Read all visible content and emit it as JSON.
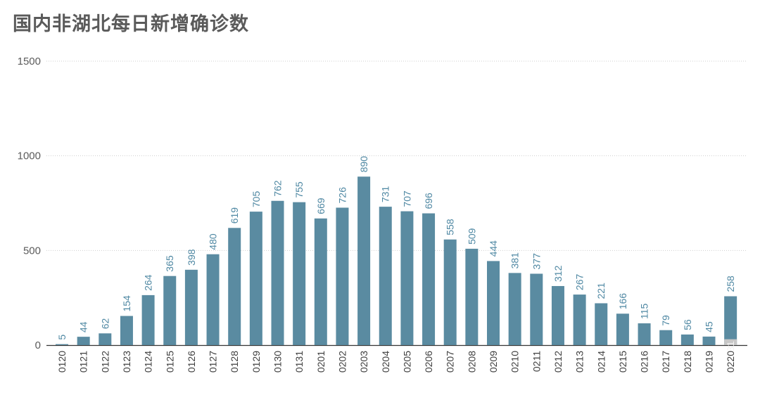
{
  "title": "国内非湖北每日新增确诊数",
  "colors": {
    "bar": "#5a8ba1",
    "bar_sub": "#c7c7c7",
    "label": "#4f88a3",
    "grid": "#cfcfcf",
    "title": "#5a5a5a"
  },
  "chart_data": {
    "type": "bar",
    "title": "国内非湖北每日新增确诊数",
    "xlabel": "",
    "ylabel": "",
    "ylim": [
      0,
      1500
    ],
    "yticks": [
      0,
      500,
      1000,
      1500
    ],
    "grid": true,
    "categories": [
      "0120",
      "0121",
      "0122",
      "0123",
      "0124",
      "0125",
      "0126",
      "0127",
      "0128",
      "0129",
      "0130",
      "0131",
      "0201",
      "0202",
      "0203",
      "0204",
      "0205",
      "0206",
      "0207",
      "0208",
      "0209",
      "0210",
      "0211",
      "0212",
      "0213",
      "0214",
      "0215",
      "0216",
      "0217",
      "0218",
      "0219",
      "0220"
    ],
    "values": [
      5,
      44,
      62,
      154,
      264,
      365,
      398,
      480,
      619,
      705,
      762,
      755,
      669,
      726,
      890,
      731,
      707,
      696,
      558,
      509,
      444,
      381,
      377,
      312,
      267,
      221,
      166,
      115,
      79,
      56,
      45,
      258
    ],
    "annotations": [
      {
        "category": "0220",
        "value": 31,
        "label": "31"
      }
    ]
  }
}
